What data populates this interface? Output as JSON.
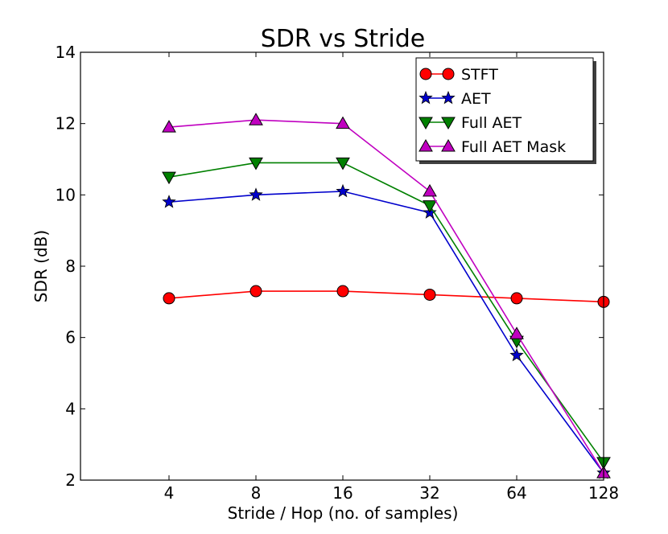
{
  "chart_data": {
    "type": "line",
    "title": "SDR vs Stride",
    "xlabel": "Stride / Hop (no. of samples)",
    "ylabel": "SDR (dB)",
    "categories": [
      "4",
      "8",
      "16",
      "32",
      "64",
      "128"
    ],
    "ylim": [
      2,
      14
    ],
    "yticks": [
      "2",
      "4",
      "6",
      "8",
      "10",
      "12",
      "14"
    ],
    "grid": false,
    "legend_position": "top-right",
    "series": [
      {
        "name": "STFT",
        "marker": "circle",
        "color": "#ff0000",
        "values": [
          7.1,
          7.3,
          7.3,
          7.2,
          7.1,
          7.0
        ]
      },
      {
        "name": "AET",
        "marker": "star",
        "color": "#0000cc",
        "values": [
          9.8,
          10.0,
          10.1,
          9.5,
          5.5,
          2.2
        ]
      },
      {
        "name": "Full AET",
        "marker": "triangle-down",
        "color": "#008000",
        "values": [
          10.5,
          10.9,
          10.9,
          9.7,
          5.9,
          2.5
        ]
      },
      {
        "name": "Full AET Mask",
        "marker": "triangle-up",
        "color": "#c000c0",
        "values": [
          11.9,
          12.1,
          12.0,
          10.1,
          6.1,
          2.2
        ]
      }
    ]
  }
}
